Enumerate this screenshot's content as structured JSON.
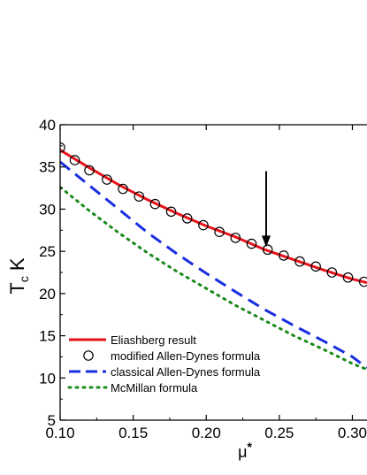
{
  "chart_data": {
    "type": "line",
    "xlabel_symbol": "μ",
    "xlabel_superscript": "*",
    "ylabel_main": "T",
    "ylabel_subscript": "c",
    "ylabel_unit": "K",
    "xlim": [
      0.1,
      0.31
    ],
    "ylim": [
      5,
      40
    ],
    "x_ticks": [
      "0.10",
      "0.15",
      "0.20",
      "0.25",
      "0.30"
    ],
    "y_ticks": [
      "5",
      "10",
      "15",
      "20",
      "25",
      "30",
      "35",
      "40"
    ],
    "legend_position": "bottom-left",
    "series": [
      {
        "name": "Eliashberg result",
        "style": "solid-line",
        "color": "#e8121a",
        "x": [
          0.1,
          0.12,
          0.14,
          0.16,
          0.18,
          0.2,
          0.22,
          0.24,
          0.26,
          0.28,
          0.3,
          0.31
        ],
        "y": [
          37.0,
          34.9,
          32.9,
          31.1,
          29.5,
          28.0,
          26.7,
          25.2,
          24.0,
          22.8,
          21.7,
          21.3
        ]
      },
      {
        "name": "modified Allen-Dynes formula",
        "style": "open-circles",
        "color": "#000000",
        "x": [
          0.1,
          0.11,
          0.12,
          0.132,
          0.143,
          0.154,
          0.165,
          0.176,
          0.187,
          0.198,
          0.209,
          0.22,
          0.231,
          0.242,
          0.253,
          0.264,
          0.275,
          0.286,
          0.297,
          0.308
        ],
        "y": [
          37.3,
          35.8,
          34.6,
          33.5,
          32.4,
          31.5,
          30.6,
          29.7,
          28.9,
          28.1,
          27.3,
          26.6,
          25.9,
          25.2,
          24.5,
          23.8,
          23.2,
          22.5,
          21.9,
          21.4
        ]
      },
      {
        "name": "classical Allen-Dynes formula",
        "style": "dashed-line",
        "color": "#1a2ee0",
        "x": [
          0.1,
          0.12,
          0.14,
          0.16,
          0.18,
          0.2,
          0.22,
          0.24,
          0.26,
          0.28,
          0.3,
          0.31
        ],
        "y": [
          35.6,
          32.8,
          30.0,
          27.2,
          24.7,
          22.4,
          20.2,
          18.1,
          16.2,
          14.4,
          12.5,
          11.2
        ]
      },
      {
        "name": "McMillan formula",
        "style": "dotted-line",
        "color": "#1a8a1a",
        "x": [
          0.1,
          0.12,
          0.14,
          0.16,
          0.18,
          0.2,
          0.22,
          0.24,
          0.26,
          0.28,
          0.3,
          0.31
        ],
        "y": [
          32.6,
          29.8,
          27.2,
          24.8,
          22.6,
          20.6,
          18.6,
          16.8,
          15.0,
          13.4,
          11.7,
          11.0
        ]
      }
    ],
    "annotations": [
      {
        "type": "arrow",
        "x": 0.241,
        "y_from": 34.5,
        "y_to": 25.5,
        "color": "#000000"
      }
    ]
  }
}
